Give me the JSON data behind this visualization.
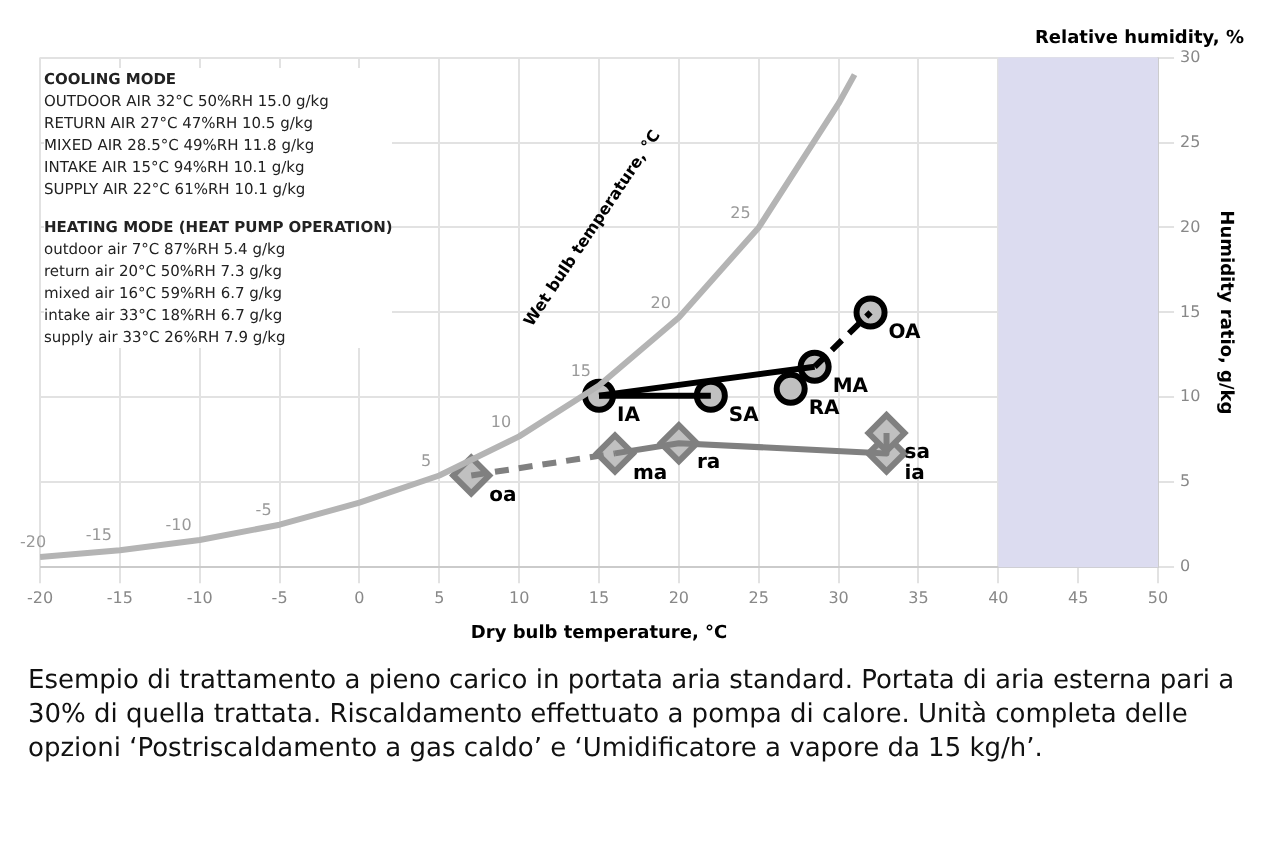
{
  "chart_data": {
    "type": "scatter",
    "title": "Relative humidity, %",
    "xlabel": "Dry bulb temperature, °C",
    "ylabel": "Humidity ratio, g/kg",
    "xlim": [
      -20,
      50
    ],
    "xticks": [
      -20,
      -15,
      -10,
      -5,
      0,
      5,
      10,
      15,
      20,
      25,
      30,
      35,
      40,
      45,
      50
    ],
    "ylim": [
      0,
      30
    ],
    "yticks": [
      0,
      5,
      10,
      15,
      20,
      25,
      30
    ],
    "grid": true,
    "legend": false,
    "bands": [
      {
        "axis": "x",
        "from": 40,
        "to": 50,
        "color": "#dcdcf0"
      }
    ],
    "series": [
      {
        "type": "line",
        "x": [
          -20,
          -15,
          -10,
          -5,
          0,
          5,
          10,
          15,
          20,
          25,
          30,
          31
        ],
        "values": [
          0.6,
          1.0,
          1.6,
          2.5,
          3.8,
          5.4,
          7.7,
          10.7,
          14.7,
          20.0,
          27.3,
          29.0
        ],
        "color": "#b4b4b4",
        "marker": "none",
        "line_style": "solid"
      },
      {
        "type": "line",
        "x": [
          15,
          28.5
        ],
        "values": [
          10.1,
          11.8
        ],
        "color": "#000000",
        "marker": "none",
        "line_style": "solid"
      },
      {
        "type": "line",
        "x": [
          15,
          22
        ],
        "values": [
          10.1,
          10.1
        ],
        "color": "#000000",
        "marker": "none",
        "line_style": "solid"
      },
      {
        "type": "line",
        "x": [
          28.5,
          32
        ],
        "values": [
          11.8,
          15
        ],
        "color": "#000000",
        "marker": "none",
        "line_style": "dashed"
      },
      {
        "type": "line",
        "x": [
          7,
          16
        ],
        "values": [
          5.4,
          6.7
        ],
        "color": "#808080",
        "marker": "none",
        "line_style": "dashed"
      },
      {
        "type": "line",
        "x": [
          16,
          20,
          33,
          33
        ],
        "values": [
          6.7,
          7.3,
          6.7,
          7.9
        ],
        "color": "#808080",
        "marker": "none",
        "line_style": "solid"
      },
      {
        "type": "scatter",
        "x": [
          32,
          28.5,
          27,
          15,
          22
        ],
        "values": [
          15,
          11.8,
          10.5,
          10.1,
          10.1
        ],
        "color": "#000000",
        "marker": "circle"
      },
      {
        "type": "scatter",
        "x": [
          7,
          16,
          20,
          33,
          33
        ],
        "values": [
          5.4,
          6.7,
          7.3,
          6.7,
          7.9
        ],
        "color": "#808080",
        "marker": "diamond"
      }
    ],
    "annotations": [
      {
        "text": "OA",
        "x": 32,
        "y": 15
      },
      {
        "text": "MA",
        "x": 28.5,
        "y": 11.8
      },
      {
        "text": "RA",
        "x": 27,
        "y": 10.5
      },
      {
        "text": "IA",
        "x": 15,
        "y": 10.1
      },
      {
        "text": "SA",
        "x": 22,
        "y": 10.1
      },
      {
        "text": "oa",
        "x": 7,
        "y": 5.4
      },
      {
        "text": "ma",
        "x": 16,
        "y": 6.7
      },
      {
        "text": "ra",
        "x": 20,
        "y": 7.3
      },
      {
        "text": "ia",
        "x": 33,
        "y": 6.7
      },
      {
        "text": "sa",
        "x": 33,
        "y": 7.9
      },
      {
        "text": "-20",
        "x": -20,
        "y": 0.6
      },
      {
        "text": "-15",
        "x": -15,
        "y": 1.0
      },
      {
        "text": "-10",
        "x": -10,
        "y": 1.6
      },
      {
        "text": "-5",
        "x": -5,
        "y": 2.5
      },
      {
        "text": "5",
        "x": 5,
        "y": 5.4
      },
      {
        "text": "10",
        "x": 10,
        "y": 7.7
      },
      {
        "text": "15",
        "x": 15,
        "y": 10.7
      },
      {
        "text": "20",
        "x": 20,
        "y": 14.7
      },
      {
        "text": "25",
        "x": 25,
        "y": 20.0
      },
      "COOLING MODE",
      "OUTDOOR AIR 32°C 50%RH 15.0 g/kg",
      "RETURN AIR 27°C 47%RH 10.5 g/kg",
      "MIXED AIR 28.5°C 49%RH 11.8 g/kg",
      "INTAKE AIR 15°C 94%RH 10.1 g/kg",
      "SUPPLY AIR 22°C 61%RH 10.1 g/kg",
      "HEATING MODE (HEAT PUMP OPERATION)",
      "outdoor air 7°C 87%RH 5.4 g/kg",
      "return air 20°C 50%RH 7.3 g/kg",
      "mixed air 16°C 59%RH 6.7 g/kg",
      "intake air 33°C 18%RH 6.7 g/kg",
      "supply air 33°C 26%RH 7.9 g/kg",
      "Wet bulb temperature, °C",
      "Esempio di trattamento a pieno carico in portata aria standard. Portata di aria esterna pari a 30% di quella trattata. Riscaldamento effettuato a pompa di calore. Unità completa delle opzioni ‘Postriscaldamento a gas caldo’ e ‘Umidificatore a vapore da 15 kg/h’."
    ]
  }
}
